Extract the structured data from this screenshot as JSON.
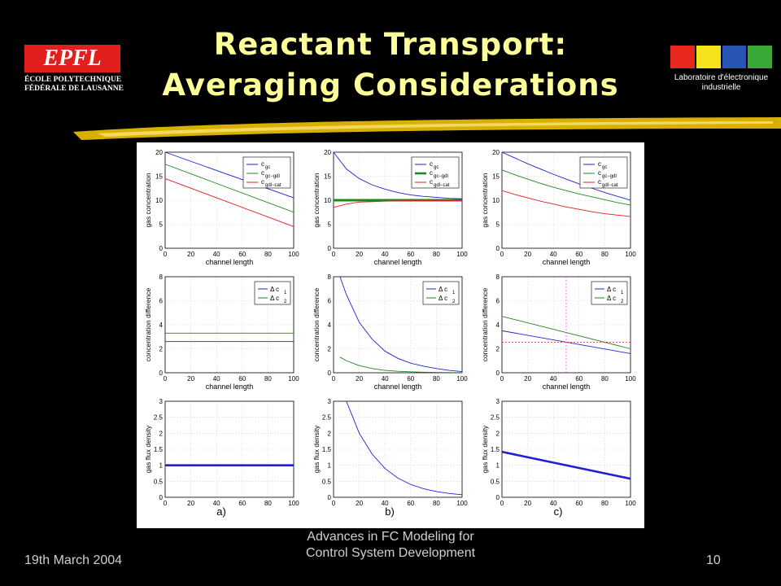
{
  "slide": {
    "title_line1": "Reactant Transport:",
    "title_line2": "Averaging Considerations",
    "footer_left": "19th March 2004",
    "footer_center_line1": "Advances in FC Modeling for",
    "footer_center_line2": "Control System Development",
    "page_number": "10"
  },
  "logos": {
    "epfl_mark": "EPFL",
    "epfl_line1": "ÉCOLE POLYTECHNIQUE",
    "epfl_line2": "FÉDÉRALE DE LAUSANNE",
    "lei_line1": "Laboratoire d'électronique",
    "lei_line2": "industrielle",
    "colors": {
      "epfl_red": "#e1201d",
      "lei_red": "#e8281c",
      "lei_yellow": "#f5e31c",
      "lei_blue": "#2a55b5",
      "lei_green": "#3aa836",
      "title": "#ffff99"
    }
  },
  "figure": {
    "subplot_labels": [
      "a)",
      "b)",
      "c)"
    ],
    "xlabel": "channel length",
    "row_ylabels": [
      "gas concentration",
      "concentration difference",
      "gas flux density"
    ],
    "x_ticks": [
      0,
      20,
      40,
      60,
      80,
      100
    ],
    "row1_y_ticks": [
      0,
      5,
      10,
      15,
      20
    ],
    "row2_y_ticks": [
      0,
      2,
      4,
      6,
      8
    ],
    "row3_y_ticks": [
      0,
      0.5,
      1,
      1.5,
      2,
      2.5,
      3
    ],
    "legend_row1": [
      {
        "main": "c",
        "sub": "gc"
      },
      {
        "main": "c",
        "sub": "gc−gdl"
      },
      {
        "main": "c",
        "sub": "gdl−cat"
      }
    ],
    "legend_row2": [
      {
        "main": "Δ c",
        "sub": "1"
      },
      {
        "main": "Δ c",
        "sub": "2"
      }
    ],
    "colors": {
      "blue": "#2020d0",
      "green": "#1a8a1a",
      "red": "#e02020",
      "magenta": "#ff44ff"
    }
  },
  "chart_data": [
    {
      "type": "line",
      "panel": "a-row1",
      "xlabel": "channel length",
      "ylabel": "gas concentration",
      "xlim": [
        0,
        100
      ],
      "ylim": [
        0,
        20
      ],
      "x": [
        0,
        100
      ],
      "series": [
        {
          "name": "c gc",
          "values": [
            20,
            10.5
          ]
        },
        {
          "name": "c gc−gdl",
          "values": [
            17.5,
            7.5
          ]
        },
        {
          "name": "c gdl−cat",
          "values": [
            14.5,
            4.5
          ]
        }
      ]
    },
    {
      "type": "line",
      "panel": "b-row1",
      "xlabel": "channel length",
      "ylabel": "gas concentration",
      "xlim": [
        0,
        100
      ],
      "ylim": [
        0,
        20
      ],
      "x": [
        0,
        10,
        20,
        30,
        40,
        50,
        60,
        70,
        80,
        90,
        100
      ],
      "series": [
        {
          "name": "c gc",
          "values": [
            20,
            16.5,
            14.5,
            13.2,
            12.3,
            11.6,
            11.1,
            10.8,
            10.6,
            10.4,
            10.3
          ]
        },
        {
          "name": "c gc−gdl",
          "values": [
            10,
            10,
            10,
            10,
            10,
            10,
            10,
            10,
            10,
            10,
            10
          ]
        },
        {
          "name": "c gdl−cat",
          "values": [
            8.5,
            9.2,
            9.6,
            9.7,
            9.8,
            9.85,
            9.9,
            9.9,
            9.9,
            9.9,
            9.9
          ]
        }
      ]
    },
    {
      "type": "line",
      "panel": "c-row1",
      "xlabel": "channel length",
      "ylabel": "gas concentration",
      "xlim": [
        0,
        100
      ],
      "ylim": [
        0,
        20
      ],
      "x": [
        0,
        10,
        20,
        30,
        40,
        50,
        60,
        70,
        80,
        90,
        100
      ],
      "series": [
        {
          "name": "c gc",
          "values": [
            20,
            18.8,
            17.6,
            16.5,
            15.4,
            14.4,
            13.4,
            12.5,
            11.6,
            10.8,
            10
          ]
        },
        {
          "name": "c gc−gdl",
          "values": [
            16.3,
            15.3,
            14.4,
            13.5,
            12.7,
            12,
            11.3,
            10.7,
            10.1,
            9.5,
            9
          ]
        },
        {
          "name": "c gdl−cat",
          "values": [
            12,
            11.2,
            10.5,
            9.8,
            9.2,
            8.6,
            8.1,
            7.6,
            7.2,
            6.9,
            6.6
          ]
        }
      ]
    },
    {
      "type": "line",
      "panel": "a-row2",
      "xlabel": "channel length",
      "ylabel": "concentration difference",
      "xlim": [
        0,
        100
      ],
      "ylim": [
        0,
        8
      ],
      "x": [
        0,
        100
      ],
      "series": [
        {
          "name": "Δ c1",
          "values": [
            2.6,
            2.6
          ]
        },
        {
          "name": "Δ c2",
          "values": [
            3.3,
            3.3
          ]
        }
      ]
    },
    {
      "type": "line",
      "panel": "b-row2",
      "xlabel": "channel length",
      "ylabel": "concentration difference",
      "xlim": [
        0,
        100
      ],
      "ylim": [
        0,
        8
      ],
      "x": [
        5,
        10,
        20,
        30,
        40,
        50,
        60,
        70,
        80,
        90,
        100
      ],
      "series": [
        {
          "name": "Δ c1",
          "values": [
            8,
            6.5,
            4.2,
            2.8,
            1.8,
            1.2,
            0.8,
            0.55,
            0.35,
            0.2,
            0.1
          ]
        },
        {
          "name": "Δ c2",
          "values": [
            1.3,
            1.0,
            0.6,
            0.35,
            0.2,
            0.12,
            0.08,
            0.05,
            0.03,
            0.02,
            0.01
          ]
        }
      ]
    },
    {
      "type": "line",
      "panel": "c-row2",
      "xlabel": "channel length",
      "ylabel": "concentration difference",
      "xlim": [
        0,
        100
      ],
      "ylim": [
        0,
        8
      ],
      "x": [
        0,
        100
      ],
      "series": [
        {
          "name": "Δ c1",
          "values": [
            3.5,
            1.6
          ]
        },
        {
          "name": "Δ c2",
          "values": [
            4.7,
            2.0
          ]
        }
      ]
    },
    {
      "type": "line",
      "panel": "a-row3",
      "xlabel": "",
      "ylabel": "gas flux density",
      "xlim": [
        0,
        100
      ],
      "ylim": [
        0,
        3
      ],
      "x": [
        0,
        100
      ],
      "series": [
        {
          "values": [
            1,
            1
          ]
        }
      ]
    },
    {
      "type": "line",
      "panel": "b-row3",
      "xlabel": "",
      "ylabel": "gas flux density",
      "xlim": [
        0,
        100
      ],
      "ylim": [
        0,
        3
      ],
      "x": [
        10,
        20,
        30,
        40,
        50,
        60,
        70,
        80,
        90,
        100
      ],
      "series": [
        {
          "values": [
            3,
            2.0,
            1.35,
            0.9,
            0.6,
            0.4,
            0.27,
            0.18,
            0.12,
            0.08
          ]
        }
      ]
    },
    {
      "type": "line",
      "panel": "c-row3",
      "xlabel": "",
      "ylabel": "gas flux density",
      "xlim": [
        0,
        100
      ],
      "ylim": [
        0,
        3
      ],
      "x": [
        0,
        100
      ],
      "series": [
        {
          "values": [
            1.42,
            0.58
          ]
        }
      ]
    }
  ]
}
